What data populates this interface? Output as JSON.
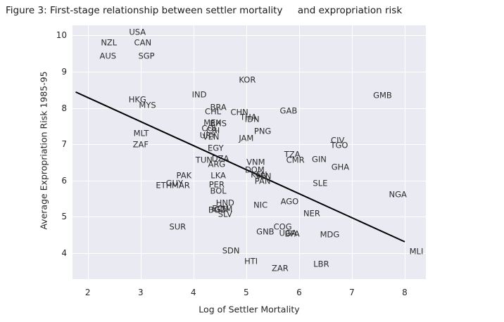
{
  "figure": {
    "title": "Figure 3: First-stage relationship between settler mortality     and expropriation risk"
  },
  "chart_data": {
    "type": "scatter",
    "title": "Figure 3: First-stage relationship between settler mortality and expropriation risk",
    "xlabel": "Log of Settler Mortality",
    "ylabel": "Average Expropriation Risk 1985-95",
    "xlim": [
      1.71,
      8.4
    ],
    "ylim": [
      3.28,
      10.28
    ],
    "x_ticks": [
      2,
      3,
      4,
      5,
      6,
      7,
      8
    ],
    "y_ticks": [
      4,
      5,
      6,
      7,
      8,
      9,
      10
    ],
    "grid": true,
    "legend": "none",
    "marker_style": "country-code-text",
    "colors": {
      "figure_bg": "#ffffff",
      "plot_bg": "#eaeaf2",
      "grid": "#ffffff",
      "text": "#262626",
      "trend_line": "#000000"
    },
    "trend_line": {
      "x_start": 1.77,
      "y_start": 8.44,
      "x_end": 8.0,
      "y_end": 4.31
    },
    "points": [
      {
        "label": "USA",
        "x": 2.94,
        "y": 10.08
      },
      {
        "label": "NZL",
        "x": 2.4,
        "y": 9.8
      },
      {
        "label": "CAN",
        "x": 3.04,
        "y": 9.8
      },
      {
        "label": "AUS",
        "x": 2.38,
        "y": 9.43
      },
      {
        "label": "SGP",
        "x": 3.11,
        "y": 9.43
      },
      {
        "label": "KOR",
        "x": 5.02,
        "y": 8.77
      },
      {
        "label": "IND",
        "x": 4.11,
        "y": 8.36
      },
      {
        "label": "GMB",
        "x": 7.58,
        "y": 8.35
      },
      {
        "label": "HKG",
        "x": 2.94,
        "y": 8.22
      },
      {
        "label": "MYS",
        "x": 3.13,
        "y": 8.06
      },
      {
        "label": "BRA",
        "x": 4.47,
        "y": 8.02
      },
      {
        "label": "GAB",
        "x": 5.8,
        "y": 7.92
      },
      {
        "label": "CHL",
        "x": 4.37,
        "y": 7.89
      },
      {
        "label": "CHN",
        "x": 4.87,
        "y": 7.88
      },
      {
        "label": "THA",
        "x": 5.04,
        "y": 7.74
      },
      {
        "label": "IDN",
        "x": 5.11,
        "y": 7.69
      },
      {
        "label": "MEX",
        "x": 4.36,
        "y": 7.59
      },
      {
        "label": "BHS",
        "x": 4.47,
        "y": 7.57
      },
      {
        "label": "COL",
        "x": 4.31,
        "y": 7.43
      },
      {
        "label": "CRI",
        "x": 4.37,
        "y": 7.38
      },
      {
        "label": "PNG",
        "x": 5.31,
        "y": 7.36
      },
      {
        "label": "MLT",
        "x": 3.01,
        "y": 7.3
      },
      {
        "label": "URY",
        "x": 4.27,
        "y": 7.23
      },
      {
        "label": "VEN",
        "x": 4.33,
        "y": 7.2
      },
      {
        "label": "JAM",
        "x": 5.0,
        "y": 7.16
      },
      {
        "label": "CIV",
        "x": 6.73,
        "y": 7.1
      },
      {
        "label": "ZAF",
        "x": 3.0,
        "y": 6.99
      },
      {
        "label": "TGO",
        "x": 6.76,
        "y": 6.97
      },
      {
        "label": "EGY",
        "x": 4.42,
        "y": 6.88
      },
      {
        "label": "TZA",
        "x": 5.87,
        "y": 6.71
      },
      {
        "label": "DZA",
        "x": 4.51,
        "y": 6.6
      },
      {
        "label": "GIN",
        "x": 6.38,
        "y": 6.58
      },
      {
        "label": "TUN",
        "x": 4.2,
        "y": 6.56
      },
      {
        "label": "CMR",
        "x": 5.93,
        "y": 6.56
      },
      {
        "label": "VNM",
        "x": 5.18,
        "y": 6.49
      },
      {
        "label": "ARG",
        "x": 4.44,
        "y": 6.44
      },
      {
        "label": "GHA",
        "x": 6.78,
        "y": 6.36
      },
      {
        "label": "DOM",
        "x": 5.16,
        "y": 6.29
      },
      {
        "label": "KEN",
        "x": 5.24,
        "y": 6.15
      },
      {
        "label": "LKA",
        "x": 4.47,
        "y": 6.13
      },
      {
        "label": "PAK",
        "x": 3.82,
        "y": 6.13
      },
      {
        "label": "SEN",
        "x": 5.32,
        "y": 6.11
      },
      {
        "label": "PAN",
        "x": 5.31,
        "y": 5.97
      },
      {
        "label": "GUY",
        "x": 3.64,
        "y": 5.92
      },
      {
        "label": "SLE",
        "x": 6.4,
        "y": 5.91
      },
      {
        "label": "PER",
        "x": 4.44,
        "y": 5.88
      },
      {
        "label": "ETH",
        "x": 3.44,
        "y": 5.86
      },
      {
        "label": "MAR",
        "x": 3.76,
        "y": 5.86
      },
      {
        "label": "BOL",
        "x": 4.47,
        "y": 5.71
      },
      {
        "label": "NGA",
        "x": 7.87,
        "y": 5.6
      },
      {
        "label": "AGO",
        "x": 5.82,
        "y": 5.41
      },
      {
        "label": "HND",
        "x": 4.6,
        "y": 5.38
      },
      {
        "label": "NIC",
        "x": 5.27,
        "y": 5.31
      },
      {
        "label": "ECU",
        "x": 4.51,
        "y": 5.22
      },
      {
        "label": "GTM",
        "x": 4.57,
        "y": 5.2
      },
      {
        "label": "BGD",
        "x": 4.45,
        "y": 5.18
      },
      {
        "label": "NER",
        "x": 6.24,
        "y": 5.08
      },
      {
        "label": "SLV",
        "x": 4.6,
        "y": 5.07
      },
      {
        "label": "SUR",
        "x": 3.7,
        "y": 4.71
      },
      {
        "label": "COG",
        "x": 5.69,
        "y": 4.71
      },
      {
        "label": "GNB",
        "x": 5.36,
        "y": 4.58
      },
      {
        "label": "UGA",
        "x": 5.79,
        "y": 4.54
      },
      {
        "label": "BFA",
        "x": 5.87,
        "y": 4.52
      },
      {
        "label": "MDG",
        "x": 6.58,
        "y": 4.5
      },
      {
        "label": "SDN",
        "x": 4.71,
        "y": 4.06
      },
      {
        "label": "MLI",
        "x": 8.22,
        "y": 4.03
      },
      {
        "label": "HTI",
        "x": 5.09,
        "y": 3.77
      },
      {
        "label": "LBR",
        "x": 6.42,
        "y": 3.68
      },
      {
        "label": "ZAR",
        "x": 5.64,
        "y": 3.58
      }
    ]
  }
}
